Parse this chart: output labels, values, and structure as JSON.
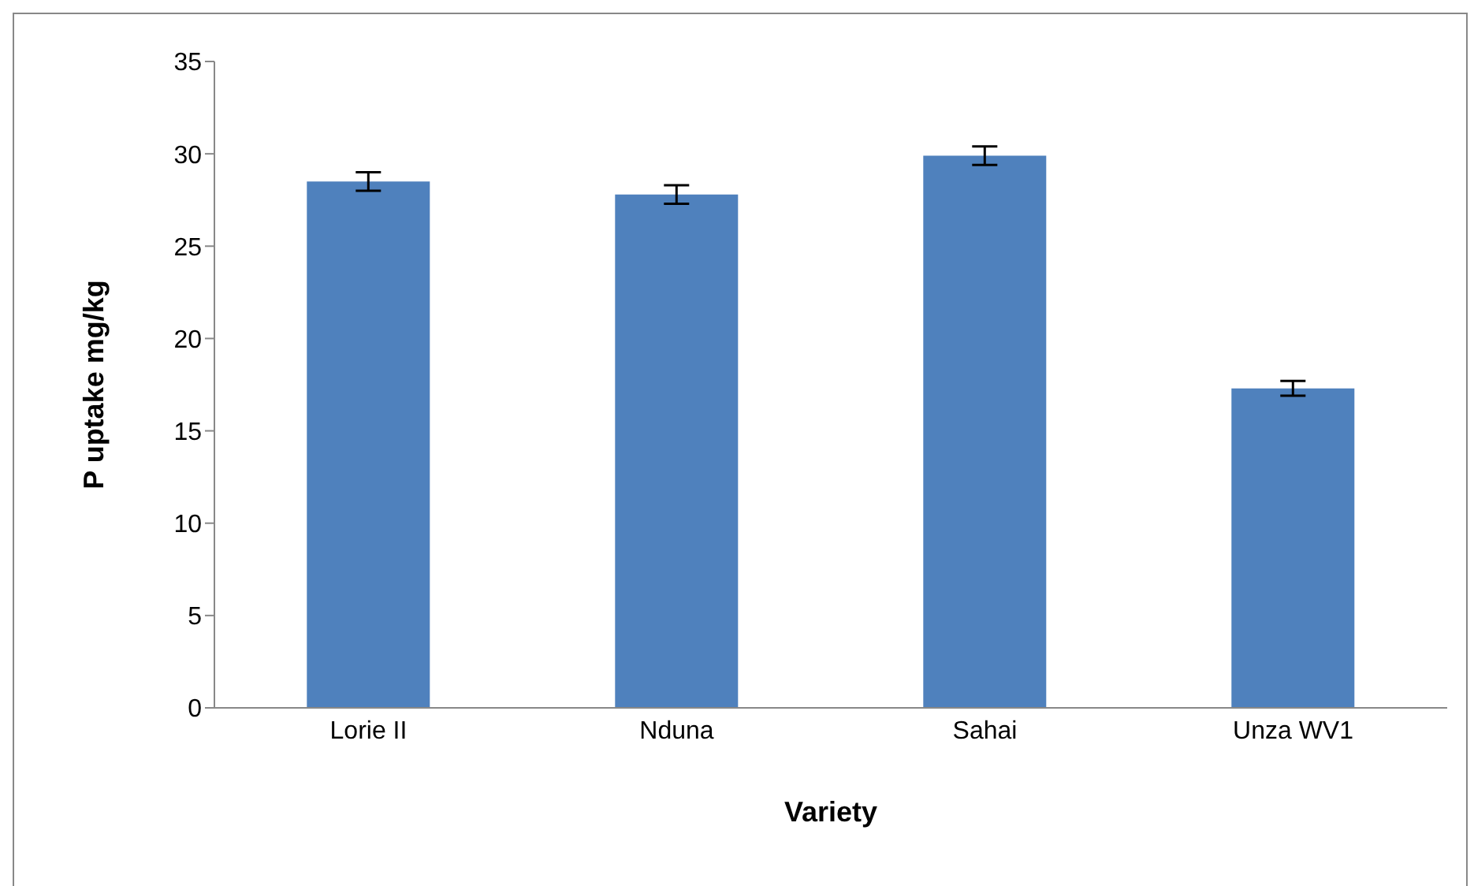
{
  "chart_data": {
    "type": "bar",
    "xlabel": "Variety",
    "ylabel": "P uptake mg/kg",
    "categories": [
      "Lorie II",
      "Nduna",
      "Sahai",
      "Unza WV1"
    ],
    "values": [
      28.5,
      27.8,
      29.9,
      17.3
    ],
    "errors": [
      0.5,
      0.5,
      0.5,
      0.4
    ],
    "color": "#4f81bd",
    "ylim": [
      0,
      35
    ],
    "yticks": [
      0,
      5,
      10,
      15,
      20,
      25,
      30,
      35
    ],
    "grid": false,
    "legend": false
  }
}
